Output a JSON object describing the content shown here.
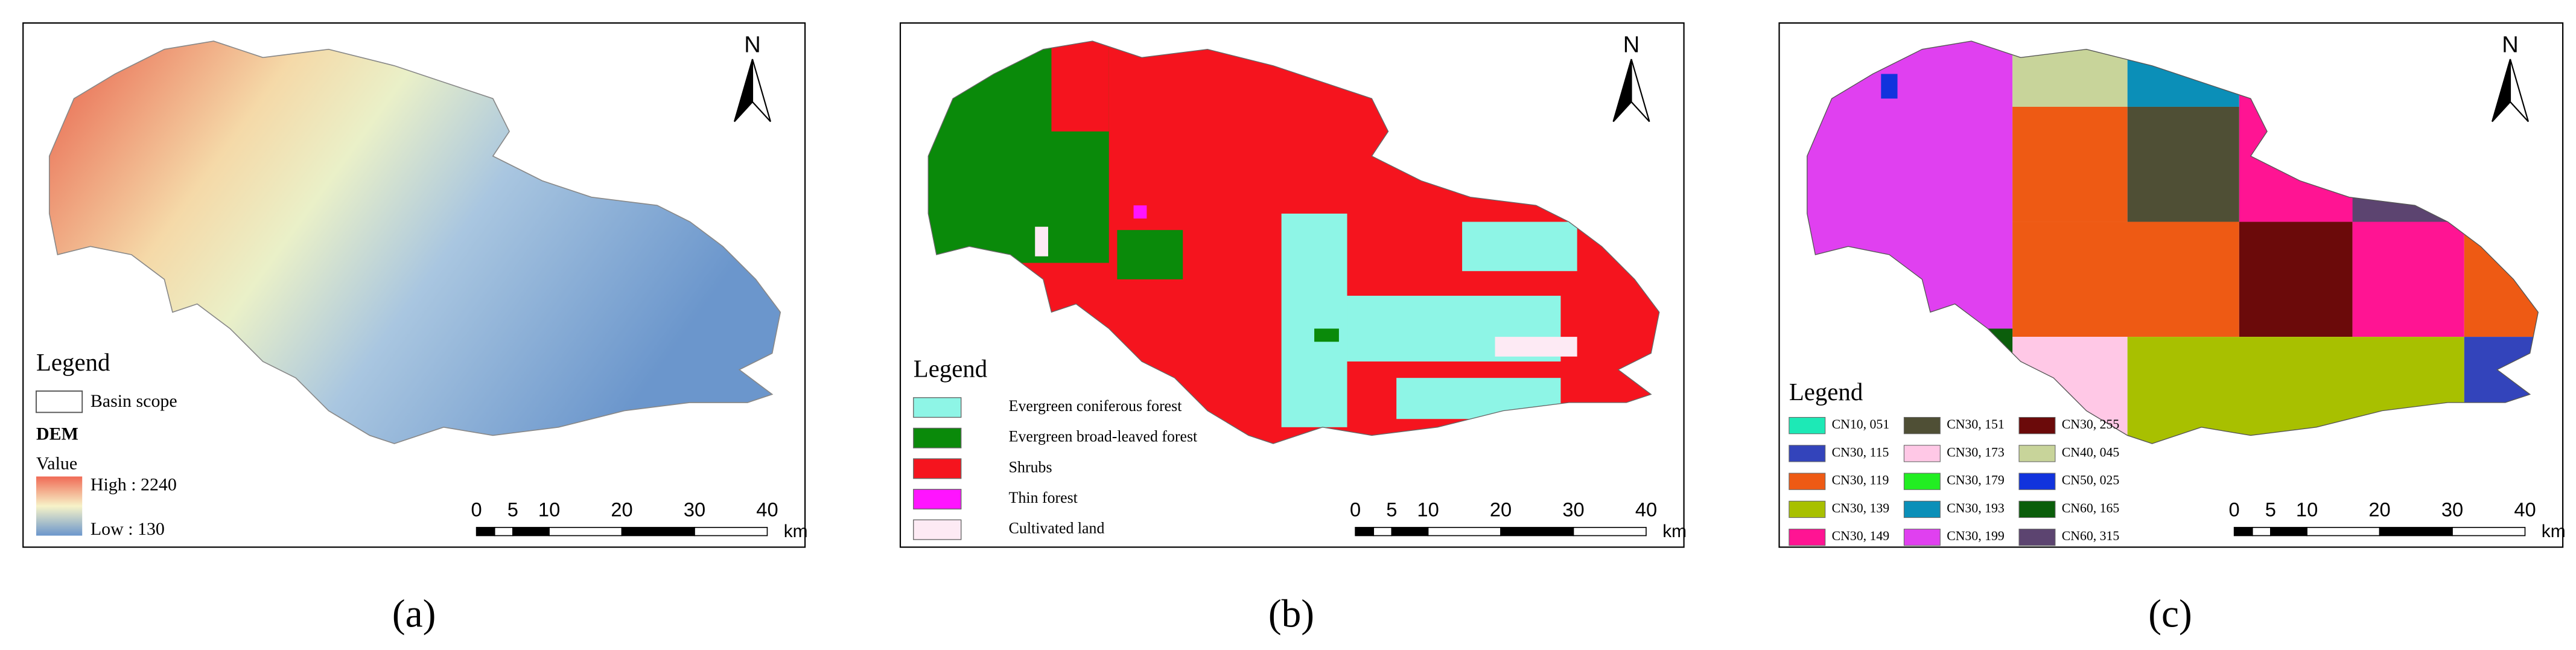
{
  "panels": [
    {
      "label": "(a)",
      "north": "N",
      "legend": {
        "title": "Legend",
        "basin": "Basin scope",
        "layer": "DEM",
        "field": "Value",
        "high": "High : 2240",
        "low": "Low : 130"
      },
      "scale_bar": {
        "ticks": [
          0,
          5,
          10,
          20,
          30,
          40
        ],
        "unit": "km"
      }
    },
    {
      "label": "(b)",
      "north": "N",
      "legend": {
        "title": "Legend",
        "items": [
          {
            "label": "Evergreen coniferous forest",
            "color": "#8ef5e6"
          },
          {
            "label": "Evergreen broad-leaved forest",
            "color": "#0a8a0a"
          },
          {
            "label": "Shrubs",
            "color": "#f5141e"
          },
          {
            "label": "Thin forest",
            "color": "#ff14ff"
          },
          {
            "label": "Cultivated land",
            "color": "#fdeaf4"
          }
        ]
      },
      "scale_bar": {
        "ticks": [
          0,
          5,
          10,
          20,
          30,
          40
        ],
        "unit": "km"
      }
    },
    {
      "label": "(c)",
      "north": "N",
      "legend": {
        "title": "Legend",
        "items": [
          {
            "label": "CN10, 051",
            "color": "#1de9b6"
          },
          {
            "label": "CN30, 115",
            "color": "#3344bb"
          },
          {
            "label": "CN30, 119",
            "color": "#ee5a14"
          },
          {
            "label": "CN30, 139",
            "color": "#a8c000"
          },
          {
            "label": "CN30, 149",
            "color": "#ff1493"
          },
          {
            "label": "CN30, 151",
            "color": "#4f4f35"
          },
          {
            "label": "CN30, 173",
            "color": "#ffc8e6"
          },
          {
            "label": "CN30, 179",
            "color": "#22ee22"
          },
          {
            "label": "CN30, 193",
            "color": "#0b8fb8"
          },
          {
            "label": "CN30, 199",
            "color": "#e040f0"
          },
          {
            "label": "CN30, 255",
            "color": "#6b0a0a"
          },
          {
            "label": "CN40, 045",
            "color": "#c8d49a"
          },
          {
            "label": "CN50, 025",
            "color": "#1133dd"
          },
          {
            "label": "CN60, 165",
            "color": "#0b5e0b"
          },
          {
            "label": "CN60, 315",
            "color": "#5c4470"
          }
        ]
      },
      "scale_bar": {
        "ticks": [
          0,
          5,
          10,
          20,
          30,
          40
        ],
        "unit": "km"
      }
    }
  ]
}
